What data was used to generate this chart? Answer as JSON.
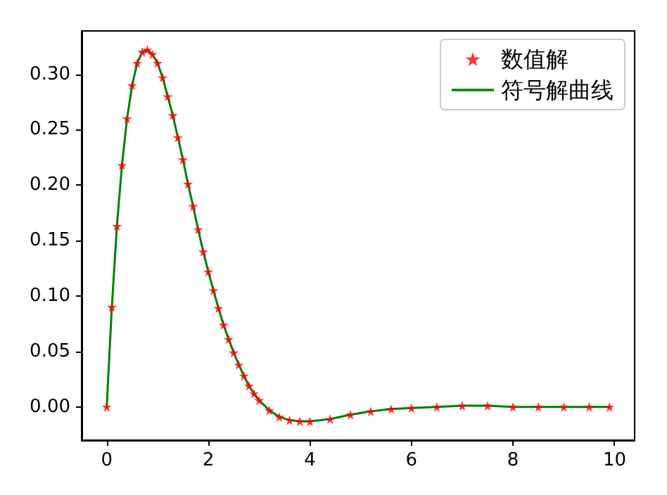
{
  "chart_data": {
    "type": "line",
    "x": [
      0,
      0.1,
      0.2,
      0.3,
      0.4,
      0.5,
      0.6,
      0.7,
      0.8,
      0.9,
      1.0,
      1.1,
      1.2,
      1.3,
      1.4,
      1.5,
      1.6,
      1.7,
      1.8,
      1.9,
      2.0,
      2.1,
      2.2,
      2.3,
      2.4,
      2.5,
      2.6,
      2.7,
      2.8,
      2.9,
      3.0,
      3.2,
      3.4,
      3.6,
      3.8,
      4.0,
      4.4,
      4.8,
      5.2,
      5.6,
      6.0,
      6.5,
      7.0,
      7.5,
      8.0,
      8.5,
      9.0,
      9.5,
      9.9
    ],
    "series": [
      {
        "name": "数值解",
        "type": "scatter",
        "marker": "star",
        "color": "#ff0000",
        "values": [
          0,
          0.09,
          0.163,
          0.218,
          0.26,
          0.29,
          0.31,
          0.32,
          0.322,
          0.318,
          0.31,
          0.297,
          0.28,
          0.263,
          0.243,
          0.223,
          0.201,
          0.181,
          0.16,
          0.14,
          0.122,
          0.105,
          0.089,
          0.074,
          0.061,
          0.049,
          0.038,
          0.028,
          0.019,
          0.012,
          0.006,
          -0.003,
          -0.009,
          -0.012,
          -0.013,
          -0.013,
          -0.011,
          -0.007,
          -0.004,
          -0.002,
          -0.001,
          0,
          0.001,
          0.001,
          0,
          0,
          0,
          0,
          0
        ]
      },
      {
        "name": "符号解曲线",
        "marker": "none",
        "line_style": "solid",
        "color": "#008000",
        "values": [
          0,
          0.09,
          0.163,
          0.218,
          0.26,
          0.29,
          0.31,
          0.32,
          0.322,
          0.318,
          0.31,
          0.297,
          0.28,
          0.263,
          0.243,
          0.223,
          0.201,
          0.181,
          0.16,
          0.14,
          0.122,
          0.105,
          0.089,
          0.074,
          0.061,
          0.049,
          0.038,
          0.028,
          0.019,
          0.012,
          0.006,
          -0.003,
          -0.009,
          -0.012,
          -0.013,
          -0.013,
          -0.011,
          -0.007,
          -0.004,
          -0.002,
          -0.001,
          0,
          0.001,
          0.001,
          0,
          0,
          0,
          0,
          0
        ]
      }
    ],
    "xlim": [
      -0.495,
      10.395
    ],
    "xticks": [
      0,
      2,
      4,
      6,
      8,
      10
    ],
    "ylim": [
      -0.03,
      0.339
    ],
    "yticks": [
      {
        "value": 0,
        "label": "0.00"
      },
      {
        "value": 0.05,
        "label": "0.05"
      },
      {
        "value": 0.1,
        "label": "0.10"
      },
      {
        "value": 0.15,
        "label": "0.15"
      },
      {
        "value": 0.2,
        "label": "0.20"
      },
      {
        "value": 0.25,
        "label": "0.25"
      },
      {
        "value": 0.3,
        "label": "0.30"
      }
    ],
    "legend": "top right"
  }
}
